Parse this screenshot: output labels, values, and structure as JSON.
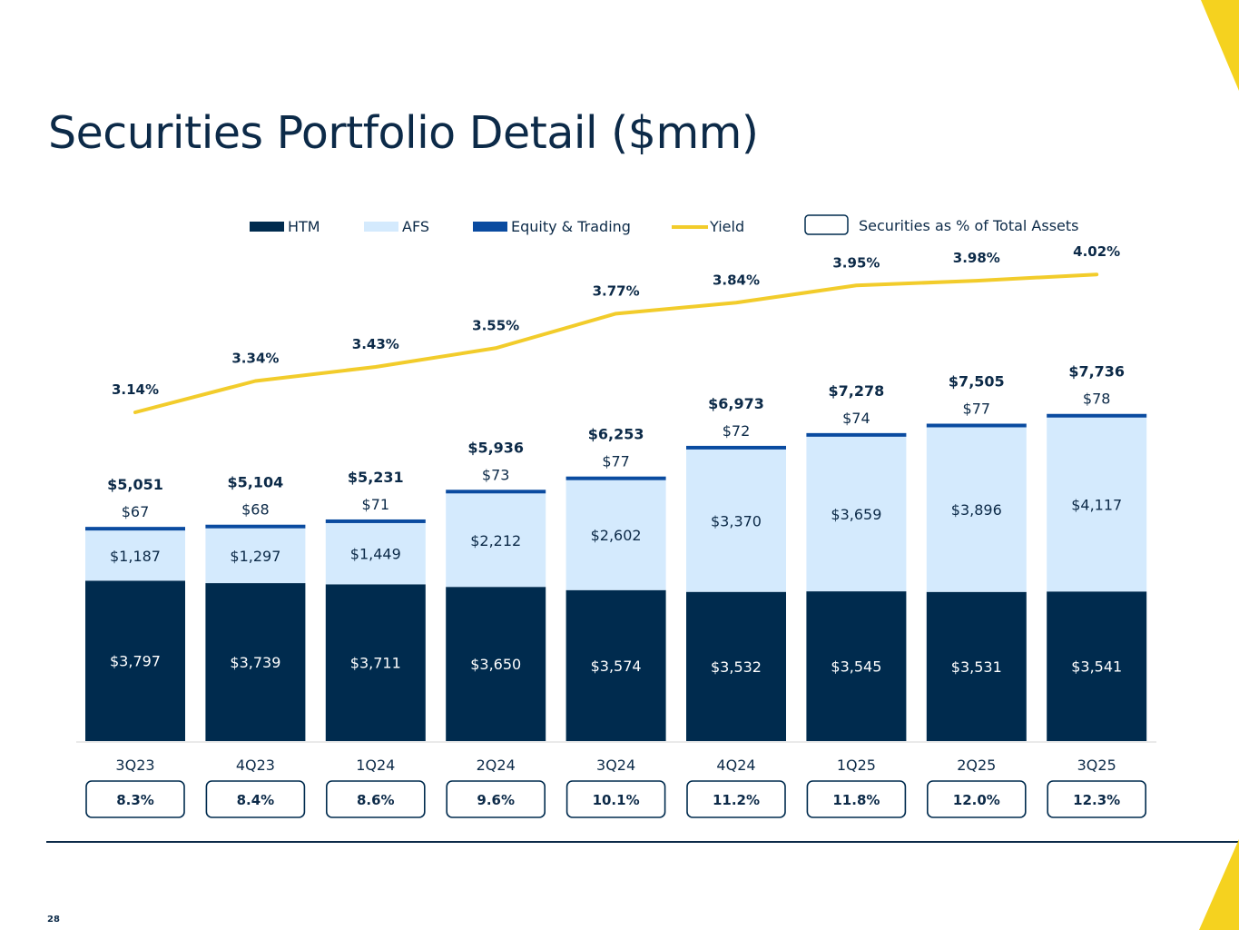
{
  "slide": {
    "title": "Securities Portfolio Detail ($mm)",
    "page_number": "28"
  },
  "colors": {
    "navy": "#002b4e",
    "htm": "#002b4e",
    "afs": "#d4eafd",
    "equity": "#0a4ba0",
    "yield": "#f2cc2b",
    "accent_yellow": "#f5d21f",
    "text": "#0c2a48"
  },
  "chart_data": {
    "type": "bar",
    "stacked": true,
    "categories": [
      "3Q23",
      "4Q23",
      "1Q24",
      "2Q24",
      "3Q24",
      "4Q24",
      "1Q25",
      "2Q25",
      "3Q25"
    ],
    "series": [
      {
        "name": "HTM",
        "values": [
          3797,
          3739,
          3711,
          3650,
          3574,
          3532,
          3545,
          3531,
          3541
        ],
        "labels": [
          "$3,797",
          "$3,739",
          "$3,711",
          "$3,650",
          "$3,574",
          "$3,532",
          "$3,545",
          "$3,531",
          "$3,541"
        ]
      },
      {
        "name": "AFS",
        "values": [
          1187,
          1297,
          1449,
          2212,
          2602,
          3370,
          3659,
          3896,
          4117
        ],
        "labels": [
          "$1,187",
          "$1,297",
          "$1,449",
          "$2,212",
          "$2,602",
          "$3,370",
          "$3,659",
          "$3,896",
          "$4,117"
        ]
      },
      {
        "name": "Equity & Trading",
        "values": [
          67,
          68,
          71,
          73,
          77,
          72,
          74,
          77,
          78
        ],
        "labels": [
          "$67",
          "$68",
          "$71",
          "$73",
          "$77",
          "$72",
          "$74",
          "$77",
          "$78"
        ]
      }
    ],
    "totals": [
      5051,
      5104,
      5231,
      5936,
      6253,
      6973,
      7278,
      7505,
      7736
    ],
    "total_labels": [
      "$5,051",
      "$5,104",
      "$5,231",
      "$5,936",
      "$6,253",
      "$6,973",
      "$7,278",
      "$7,505",
      "$7,736"
    ],
    "yield": {
      "name": "Yield",
      "values": [
        3.14,
        3.34,
        3.43,
        3.55,
        3.77,
        3.84,
        3.95,
        3.98,
        4.02
      ],
      "labels": [
        "3.14%",
        "3.34%",
        "3.43%",
        "3.55%",
        "3.77%",
        "3.84%",
        "3.95%",
        "3.98%",
        "4.02%"
      ]
    },
    "securities_pct_of_assets": {
      "name": "Securities as % of Total Assets",
      "values": [
        8.3,
        8.4,
        8.6,
        9.6,
        10.1,
        11.2,
        11.8,
        12.0,
        12.3
      ],
      "labels": [
        "8.3%",
        "8.4%",
        "8.6%",
        "9.6%",
        "10.1%",
        "11.2%",
        "11.8%",
        "12.0%",
        "12.3%"
      ]
    },
    "legend": [
      "HTM",
      "AFS",
      "Equity & Trading",
      "Yield",
      "Securities as % of Total Assets"
    ],
    "legend_position": "top",
    "grid": false
  }
}
